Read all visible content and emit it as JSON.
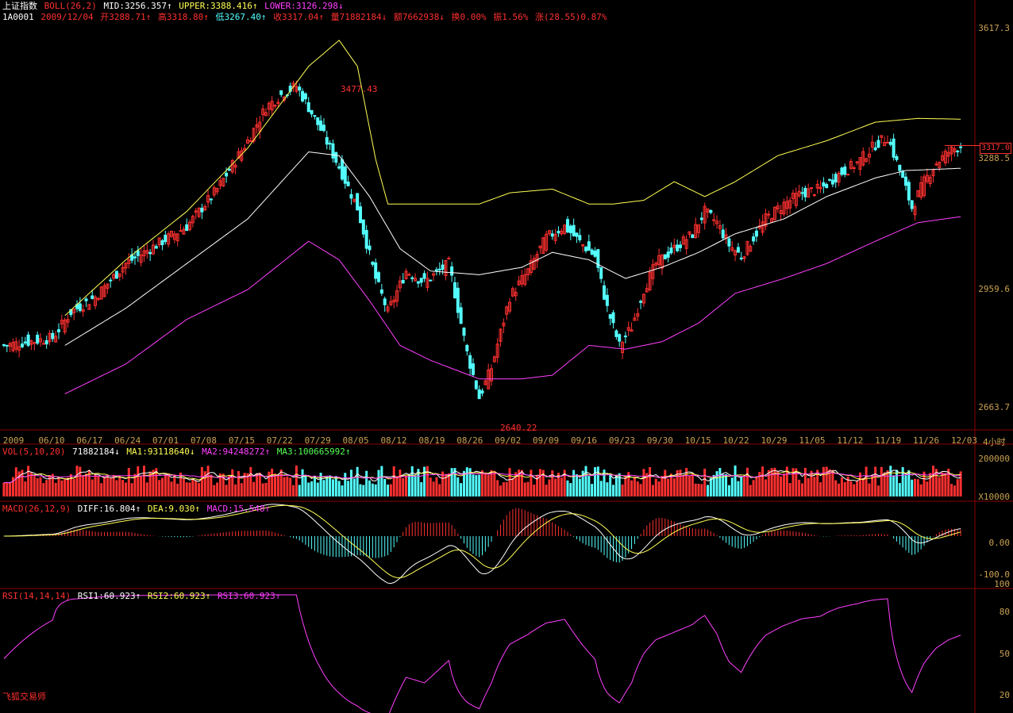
{
  "header": {
    "index_name": "上证指数",
    "boll_label": "BOLL(26,2)",
    "mid": "MID:3256.357↑",
    "upper": "UPPER:3388.416↑",
    "lower": "LOWER:3126.298↓",
    "code": "1A0001",
    "date": "2009/12/04",
    "open": "开3288.71↑",
    "high": "高3318.80↑",
    "low": "低3267.40↑",
    "close": "收3317.04↑",
    "volume": "量71882184↓",
    "amount": "额7662938↓",
    "turnover": "换0.00%",
    "amplitude": "振1.56%",
    "change": "涨(28.55)0.87%"
  },
  "price_axis": [
    "3617.3",
    "3288.5",
    "2959.6",
    "2663.7"
  ],
  "last_price_tag": "3317.0",
  "annotations": {
    "high": "3477.43",
    "low": "2640.22"
  },
  "date_axis": [
    "2009",
    "06/10",
    "06/17",
    "06/24",
    "07/01",
    "07/08",
    "07/15",
    "07/22",
    "07/29",
    "08/05",
    "08/12",
    "08/19",
    "08/26",
    "09/02",
    "09/09",
    "09/16",
    "09/23",
    "09/30",
    "10/15",
    "10/22",
    "10/29",
    "11/05",
    "11/12",
    "11/19",
    "11/26",
    "12/03"
  ],
  "period_label": "4小时",
  "vol": {
    "label": "VOL(5,10,20)",
    "value": "71882184↓",
    "ma1": "MA1:93118640↓",
    "ma2": "MA2:94248272↑",
    "ma3": "MA3:100665992↑",
    "axis_top": "200000",
    "axis_unit": "X10000"
  },
  "macd": {
    "label": "MACD(26,12,9)",
    "diff": "DIFF:16.804↑",
    "dea": "DEA:9.030↑",
    "macd": "MACD:15.548↑",
    "axis": [
      "0.00",
      "-100.0"
    ]
  },
  "rsi": {
    "label": "RSI(14,14,14)",
    "rsi1": "RSI1:60.923↑",
    "rsi2": "RSI2:60.923↑",
    "rsi3": "RSI3:60.923↑",
    "axis": [
      "100",
      "80",
      "50",
      "20"
    ]
  },
  "signature": "飞狐交易师",
  "colors": {
    "up": "#ff3030",
    "down": "#54ffff",
    "mid": "#ffffff",
    "upper": "#ffff54",
    "lower": "#ff40ff",
    "axis": "#c8a050",
    "grid": "#8b0000"
  },
  "chart_data": {
    "type": "line",
    "title": "上证指数",
    "ylim": [
      2600,
      3640
    ],
    "close_keypoints": [
      [
        0,
        2780
      ],
      [
        8,
        2790
      ],
      [
        16,
        2800
      ],
      [
        22,
        2870
      ],
      [
        30,
        2910
      ],
      [
        40,
        3000
      ],
      [
        50,
        3050
      ],
      [
        60,
        3100
      ],
      [
        70,
        3200
      ],
      [
        80,
        3330
      ],
      [
        86,
        3420
      ],
      [
        92,
        3460
      ],
      [
        96,
        3477
      ],
      [
        100,
        3420
      ],
      [
        104,
        3360
      ],
      [
        110,
        3260
      ],
      [
        116,
        3150
      ],
      [
        122,
        2960
      ],
      [
        126,
        2870
      ],
      [
        132,
        2980
      ],
      [
        138,
        2950
      ],
      [
        146,
        3000
      ],
      [
        152,
        2760
      ],
      [
        156,
        2640
      ],
      [
        160,
        2720
      ],
      [
        166,
        2910
      ],
      [
        172,
        2980
      ],
      [
        178,
        3070
      ],
      [
        184,
        3100
      ],
      [
        190,
        3050
      ],
      [
        194,
        3020
      ],
      [
        198,
        2880
      ],
      [
        202,
        2780
      ],
      [
        206,
        2830
      ],
      [
        210,
        2930
      ],
      [
        214,
        3000
      ],
      [
        220,
        3040
      ],
      [
        226,
        3080
      ],
      [
        230,
        3140
      ],
      [
        234,
        3110
      ],
      [
        238,
        3050
      ],
      [
        242,
        3020
      ],
      [
        246,
        3070
      ],
      [
        250,
        3120
      ],
      [
        256,
        3160
      ],
      [
        262,
        3190
      ],
      [
        268,
        3200
      ],
      [
        274,
        3240
      ],
      [
        280,
        3270
      ],
      [
        286,
        3320
      ],
      [
        290,
        3340
      ],
      [
        294,
        3250
      ],
      [
        298,
        3150
      ],
      [
        302,
        3220
      ],
      [
        306,
        3270
      ],
      [
        310,
        3300
      ],
      [
        314,
        3317
      ]
    ],
    "boll": {
      "upper_keypoints": [
        [
          20,
          2860
        ],
        [
          40,
          3010
        ],
        [
          60,
          3140
        ],
        [
          80,
          3310
        ],
        [
          100,
          3530
        ],
        [
          110,
          3600
        ],
        [
          116,
          3530
        ],
        [
          122,
          3280
        ],
        [
          126,
          3160
        ],
        [
          140,
          3160
        ],
        [
          156,
          3160
        ],
        [
          166,
          3190
        ],
        [
          180,
          3200
        ],
        [
          192,
          3160
        ],
        [
          200,
          3160
        ],
        [
          210,
          3170
        ],
        [
          220,
          3220
        ],
        [
          230,
          3180
        ],
        [
          240,
          3220
        ],
        [
          254,
          3290
        ],
        [
          270,
          3330
        ],
        [
          286,
          3380
        ],
        [
          300,
          3390
        ],
        [
          314,
          3388
        ]
      ],
      "mid_keypoints": [
        [
          20,
          2780
        ],
        [
          40,
          2880
        ],
        [
          60,
          3000
        ],
        [
          80,
          3120
        ],
        [
          100,
          3300
        ],
        [
          110,
          3290
        ],
        [
          120,
          3180
        ],
        [
          130,
          3040
        ],
        [
          140,
          2980
        ],
        [
          156,
          2970
        ],
        [
          170,
          2990
        ],
        [
          180,
          3030
        ],
        [
          192,
          3010
        ],
        [
          204,
          2960
        ],
        [
          216,
          2990
        ],
        [
          228,
          3030
        ],
        [
          240,
          3080
        ],
        [
          256,
          3120
        ],
        [
          270,
          3180
        ],
        [
          286,
          3230
        ],
        [
          296,
          3250
        ],
        [
          314,
          3256
        ]
      ],
      "lower_keypoints": [
        [
          20,
          2650
        ],
        [
          40,
          2730
        ],
        [
          60,
          2850
        ],
        [
          80,
          2930
        ],
        [
          100,
          3060
        ],
        [
          110,
          3010
        ],
        [
          120,
          2900
        ],
        [
          130,
          2780
        ],
        [
          140,
          2740
        ],
        [
          156,
          2690
        ],
        [
          170,
          2690
        ],
        [
          180,
          2700
        ],
        [
          192,
          2780
        ],
        [
          204,
          2770
        ],
        [
          216,
          2790
        ],
        [
          228,
          2840
        ],
        [
          240,
          2920
        ],
        [
          256,
          2960
        ],
        [
          270,
          3000
        ],
        [
          286,
          3060
        ],
        [
          300,
          3110
        ],
        [
          314,
          3126
        ]
      ]
    },
    "volume_ylim": [
      0,
      200000
    ],
    "macd_ylim": [
      -120,
      60
    ],
    "rsi_ylim": [
      10,
      100
    ]
  }
}
